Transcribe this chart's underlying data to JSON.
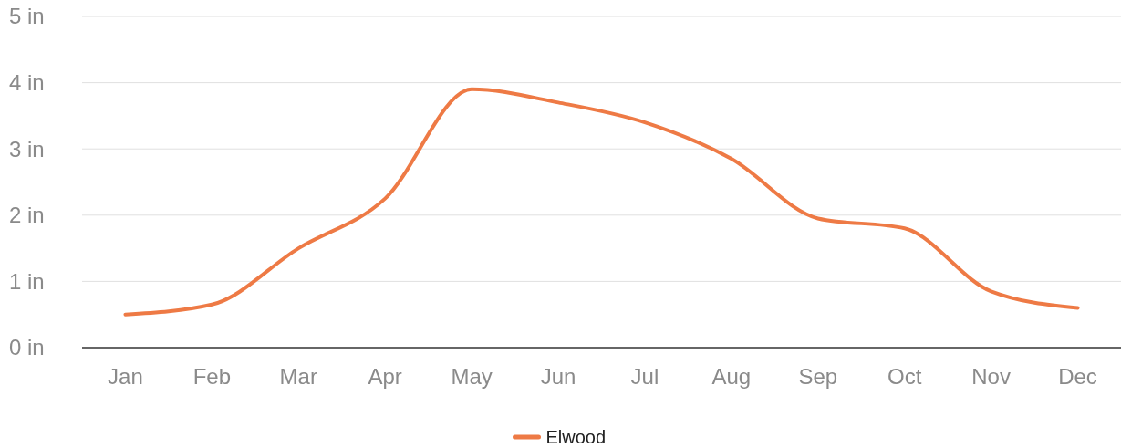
{
  "chart_data": {
    "type": "line",
    "categories": [
      "Jan",
      "Feb",
      "Mar",
      "Apr",
      "May",
      "Jun",
      "Jul",
      "Aug",
      "Sep",
      "Oct",
      "Nov",
      "Dec"
    ],
    "series": [
      {
        "name": "Elwood",
        "color": "#ee7a45",
        "values": [
          0.5,
          0.65,
          1.5,
          2.25,
          3.9,
          3.7,
          3.4,
          2.85,
          1.95,
          1.8,
          0.85,
          0.6
        ]
      }
    ],
    "ylim": [
      0,
      5
    ],
    "yticks": [
      {
        "value": 0,
        "label": "0 in"
      },
      {
        "value": 1,
        "label": "1 in"
      },
      {
        "value": 2,
        "label": "2 in"
      },
      {
        "value": 3,
        "label": "3 in"
      },
      {
        "value": 4,
        "label": "4 in"
      },
      {
        "value": 5,
        "label": "5 in"
      }
    ],
    "grid": "y",
    "legend": "bottom"
  }
}
